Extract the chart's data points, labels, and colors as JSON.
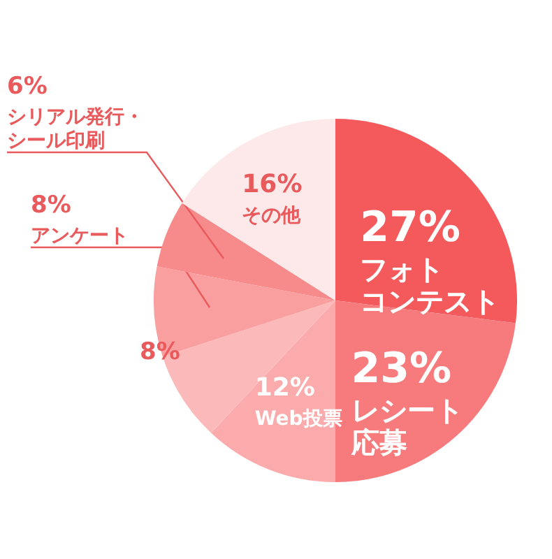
{
  "chart_data": {
    "type": "pie",
    "categories": [
      "フォトコンテスト",
      "レシート応募",
      "Web投票",
      null,
      "アンケート",
      "シリアル発行・シール印刷",
      "その他"
    ],
    "values": [
      27,
      23,
      12,
      8,
      8,
      6,
      16
    ],
    "value_labels": [
      "27%",
      "23%",
      "12%",
      "8%",
      "8%",
      "6%",
      "16%"
    ],
    "colors": [
      "#f45a5c",
      "#f77b7c",
      "#fbabab",
      "#fbb9b9",
      "#f99f9f",
      "#f78a8a",
      "#fde9e9"
    ]
  }
}
